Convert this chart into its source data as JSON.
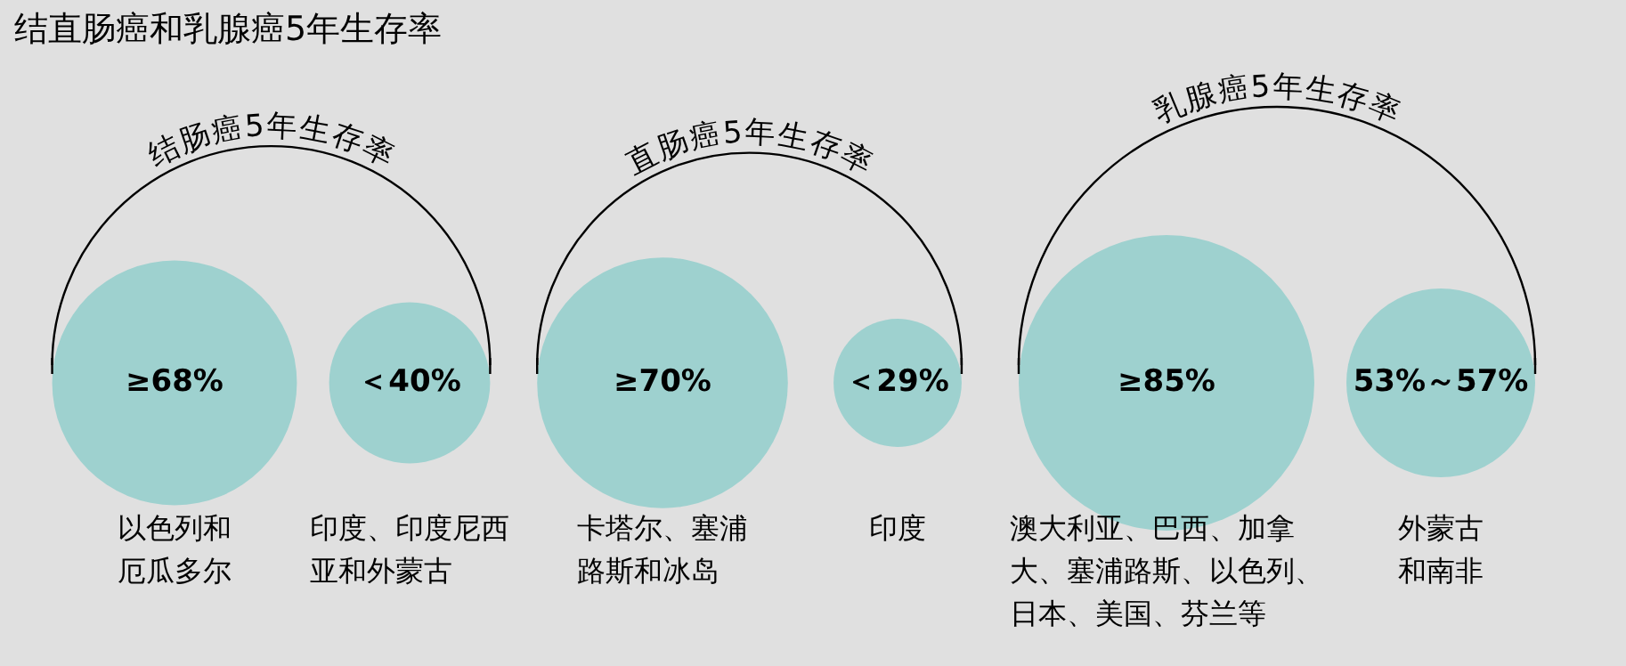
{
  "chart_data": {
    "type": "other",
    "title": "结直肠癌和乳腺癌5年生存率",
    "annotations": [
      "结肠癌5年生存率",
      "直肠癌5年生存率",
      "乳腺癌5年生存率"
    ],
    "categories": [
      "以色列和厄瓜多尔",
      "印度、印度尼西亚和外蒙古",
      "卡塔尔、塞浦路斯和冰岛",
      "印度",
      "澳大利亚、巴西、加拿大、塞浦路斯、以色列、日本、美国、芬兰等",
      "外蒙古和南非"
    ],
    "values": [
      68,
      40,
      70,
      29,
      85,
      null
    ],
    "value_labels": [
      "≥68%",
      "＜40%",
      "≥70%",
      "＜29%",
      "≥85%",
      "53%～57%"
    ],
    "color": "#9ed1cf"
  }
}
